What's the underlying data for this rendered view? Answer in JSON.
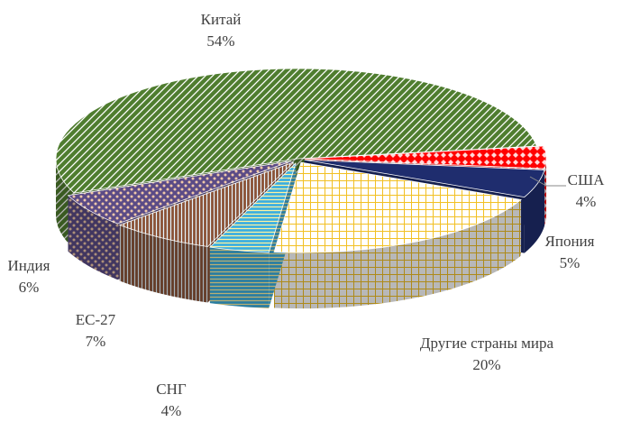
{
  "chart_data": {
    "type": "pie",
    "categories": [
      "США",
      "Япония",
      "Другие страны мира",
      "СНГ",
      "ЕС-27",
      "Индия",
      "Китай"
    ],
    "values": [
      4,
      5,
      20,
      4,
      7,
      6,
      54
    ],
    "value_labels": [
      "4%",
      "5%",
      "20%",
      "4%",
      "7%",
      "6%",
      "54%"
    ],
    "colors": [
      "#ff0000",
      "#1f2d6e",
      "#f2c023",
      "#3aaee0",
      "#8a5236",
      "#5b4b86",
      "#4f7d2f"
    ]
  }
}
